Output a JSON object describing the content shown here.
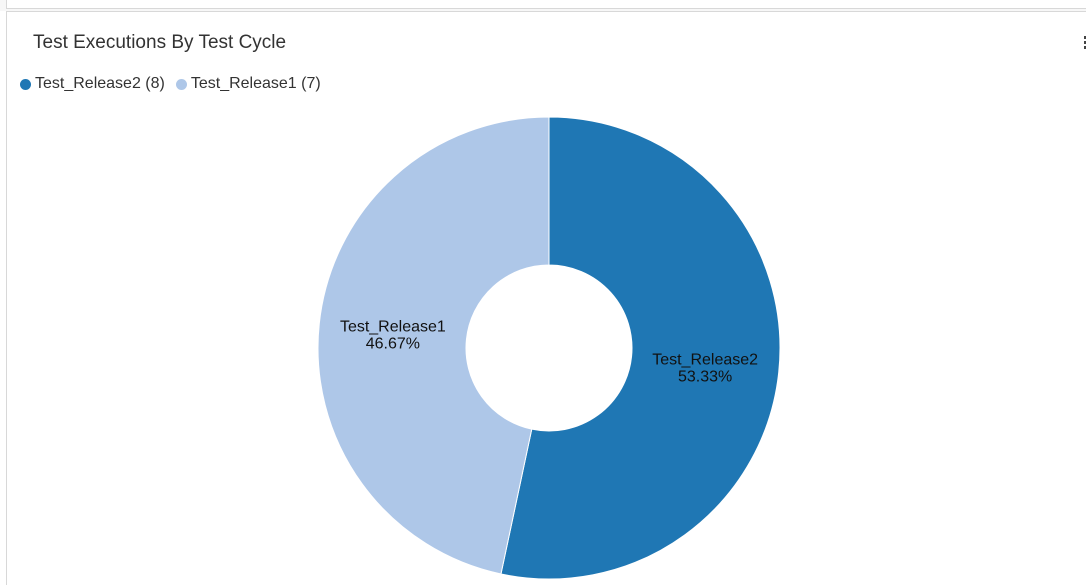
{
  "panel": {
    "title": "Test Executions By Test Cycle",
    "menu_icon": "vertical-dots-icon"
  },
  "legend": [
    {
      "label": "Test_Release2 (8)",
      "color": "#1f77b4"
    },
    {
      "label": "Test_Release1 (7)",
      "color": "#aec7e8"
    }
  ],
  "chart_data": {
    "type": "pie",
    "variant": "donut",
    "title": "Test Executions By Test Cycle",
    "slices": [
      {
        "name": "Test_Release2",
        "value": 8,
        "percent_label": "53.33%",
        "color": "#1f77b4"
      },
      {
        "name": "Test_Release1",
        "value": 7,
        "percent_label": "46.67%",
        "color": "#aec7e8"
      }
    ],
    "legend_position": "top-left"
  }
}
